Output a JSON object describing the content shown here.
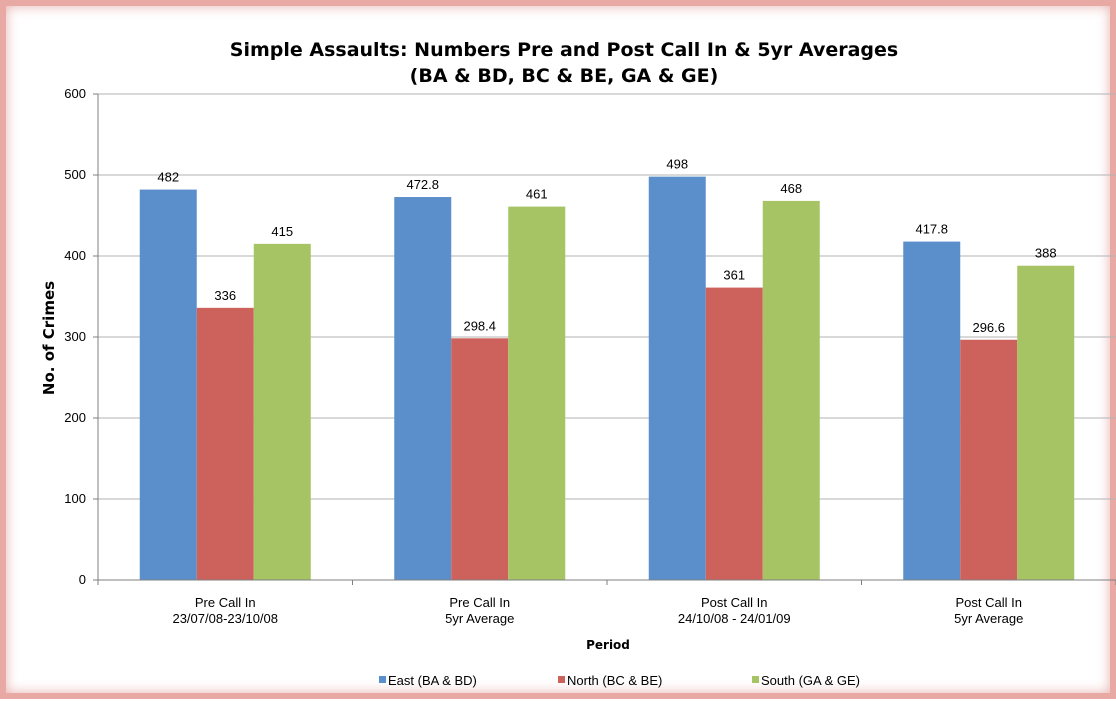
{
  "chart_data": {
    "type": "bar",
    "title": "Simple Assaults: Numbers Pre and Post Call In & 5yr Averages",
    "subtitle": "(BA & BD, BC & BE, GA & GE)",
    "xlabel": "Period",
    "ylabel": "No. of Crimes",
    "ylim": [
      0,
      600
    ],
    "yticks": [
      0,
      100,
      200,
      300,
      400,
      500,
      600
    ],
    "grid": true,
    "legend_position": "bottom",
    "categories": [
      [
        "Pre Call In",
        "23/07/08-23/10/08"
      ],
      [
        "Pre Call In",
        "5yr Average"
      ],
      [
        "Post Call In",
        "24/10/08 - 24/01/09"
      ],
      [
        "Post Call In",
        "5yr Average"
      ]
    ],
    "series": [
      {
        "name": "East (BA & BD)",
        "color": "#5b8fcc",
        "values": [
          482,
          472.8,
          498,
          417.8
        ]
      },
      {
        "name": "North (BC & BE)",
        "color": "#cd625c",
        "values": [
          336,
          298.4,
          361,
          296.6
        ]
      },
      {
        "name": "South (GA & GE)",
        "color": "#a6c464",
        "values": [
          415,
          461,
          468,
          388
        ]
      }
    ],
    "colors": {
      "grid": "#b3b3b3",
      "axis": "#7f7f7f",
      "frame_border": "#e8a8a4"
    }
  }
}
